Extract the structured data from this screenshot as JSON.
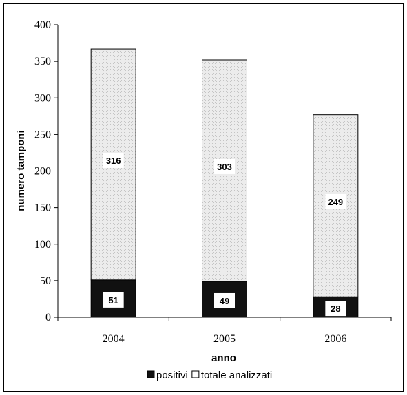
{
  "chart_data": {
    "type": "bar",
    "stacked": true,
    "categories": [
      "2004",
      "2005",
      "2006"
    ],
    "series": [
      {
        "name": "positivi",
        "values": [
          51,
          49,
          28
        ],
        "color": "#111111"
      },
      {
        "name": "totale analizzati",
        "values": [
          316,
          303,
          249
        ],
        "color": "#ebebeb"
      }
    ],
    "xlabel": "anno",
    "ylabel": "numero tamponi",
    "ylim": [
      0,
      400
    ],
    "yticks": [
      0,
      50,
      100,
      150,
      200,
      250,
      300,
      350,
      400
    ],
    "grid": false,
    "legend_position": "bottom"
  }
}
